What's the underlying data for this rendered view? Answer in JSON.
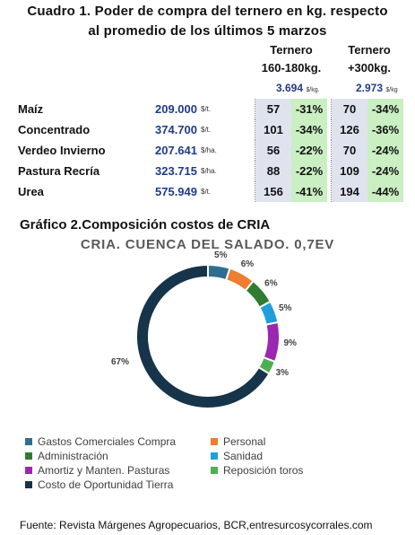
{
  "table_title_line1": "Cuadro 1. Poder de compra del ternero en kg. respecto",
  "table_title_line2": "al promedio de los últimos 5 marzos",
  "col1": {
    "h1": "Ternero",
    "h2": "160-180kg.",
    "price": "3.694",
    "unit": "$/kg."
  },
  "col2": {
    "h1": "Ternero",
    "h2": "+300kg.",
    "price": "2.973",
    "unit": "$/kg"
  },
  "rows": [
    {
      "name": "Maíz",
      "value": "209.000",
      "unit": "$/t.",
      "kg1": "57",
      "pct1": "-31%",
      "kg2": "70",
      "pct2": "-34%"
    },
    {
      "name": "Concentrado",
      "value": "374.700",
      "unit": "$/t.",
      "kg1": "101",
      "pct1": "-34%",
      "kg2": "126",
      "pct2": "-36%"
    },
    {
      "name": "Verdeo Invierno",
      "value": "207.641",
      "unit": "$/ha.",
      "kg1": "56",
      "pct1": "-22%",
      "kg2": "70",
      "pct2": "-24%"
    },
    {
      "name": "Pastura Recría",
      "value": "323.715",
      "unit": "$/ha.",
      "kg1": "88",
      "pct1": "-22%",
      "kg2": "109",
      "pct2": "-24%"
    },
    {
      "name": "Urea",
      "value": "575.949",
      "unit": "$/t.",
      "kg1": "156",
      "pct1": "-41%",
      "kg2": "194",
      "pct2": "-44%"
    }
  ],
  "chart_heading": "Gráfico 2.Composición costos de CRIA",
  "chart_data": {
    "type": "pie",
    "title": "CRIA. CUENCA DEL SALADO. 0,7EV",
    "categories": [
      "Gastos Comerciales Compra",
      "Personal",
      "Administración",
      "Sanidad",
      "Amortiz y Manten. Pasturas",
      "Reposición toros",
      "Costo de Oportunidad Tierra"
    ],
    "values": [
      5,
      6,
      6,
      5,
      9,
      3,
      67
    ],
    "labels": [
      "5%",
      "6%",
      "6%",
      "5%",
      "9%",
      "3%",
      "67%"
    ],
    "colors": [
      "#2e6f8e",
      "#ed7d31",
      "#2e7d32",
      "#1e9fdc",
      "#9c27b0",
      "#4caf50",
      "#16344a"
    ],
    "legend_position": "bottom"
  },
  "source": "Fuente: Revista Márgenes Agropecuarios, BCR,entresurcosycorrales.com"
}
